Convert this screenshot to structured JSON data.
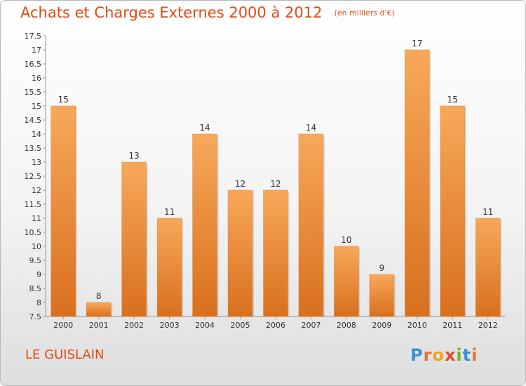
{
  "chart_data": {
    "type": "bar",
    "title": "Achats et Charges Externes 2000 à 2012",
    "subtitle": "(en milliers d'€)",
    "categories": [
      "2000",
      "2001",
      "2002",
      "2003",
      "2004",
      "2005",
      "2006",
      "2007",
      "2008",
      "2009",
      "2010",
      "2011",
      "2012"
    ],
    "values": [
      15,
      8,
      13,
      11,
      14,
      12,
      12,
      14,
      10,
      9,
      17,
      15,
      11
    ],
    "value_labels": [
      "15",
      "8",
      "13",
      "11",
      "14",
      "12",
      "12",
      "14",
      "10",
      "9",
      "17",
      "15",
      "11"
    ],
    "ylim": [
      7.5,
      17.5
    ],
    "y_ticks": [
      7.5,
      8,
      8.5,
      9,
      9.5,
      10,
      10.5,
      11,
      11.5,
      12,
      12.5,
      13,
      13.5,
      14,
      14.5,
      15,
      15.5,
      16,
      16.5,
      17,
      17.5
    ],
    "y_tick_labels": [
      "7.5",
      "8",
      "8.5",
      "9",
      "9.5",
      "10",
      "10.5",
      "11",
      "11.5",
      "12",
      "12.5",
      "13",
      "13.5",
      "14",
      "14.5",
      "15",
      "15.5",
      "16",
      "16.5",
      "17",
      "17.5"
    ],
    "xlabel": "",
    "ylabel": "",
    "grid": false,
    "legend": "none",
    "colors": {
      "bar_top": "#f7a85a",
      "bar_bottom": "#d8701e",
      "title": "#e04a12",
      "axis": "#999999"
    }
  },
  "footer": {
    "commune": "LE GUISLAIN",
    "brand_letters": [
      "P",
      "r",
      "o",
      "x",
      "i",
      "t",
      "i"
    ],
    "brand_colors": [
      "#3b8fd6",
      "#e8732a",
      "#f2a31b",
      "#e34a2a",
      "#6fba2c",
      "#3b8fd6",
      "#e8732a"
    ]
  }
}
